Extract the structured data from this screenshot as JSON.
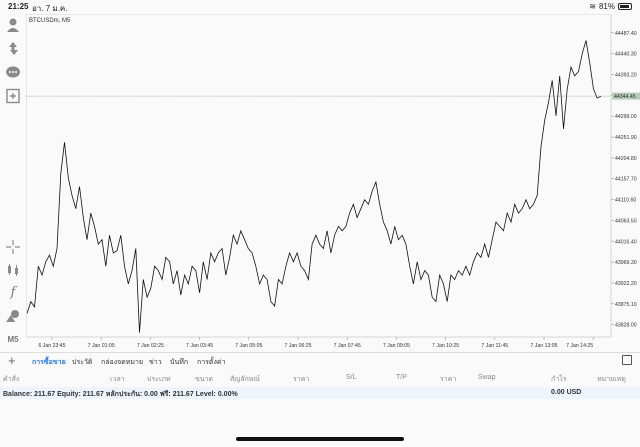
{
  "status_bar": {
    "time": "21:25",
    "date": "อา. 7 ม.ค.",
    "battery": "81%"
  },
  "sidebar": {
    "icons": [
      "accounts-icon",
      "trade-icon",
      "chat-icon",
      "new-chart-icon",
      "crosshair-icon",
      "candles-icon",
      "indicators-icon",
      "objects-icon",
      "timeframe"
    ],
    "timeframe_label": "M5"
  },
  "chart": {
    "symbol_label": "BTCUSDm, M5",
    "current_price_label": "44344.45"
  },
  "chart_data": {
    "type": "line",
    "title": "BTCUSDm, M5",
    "y_ticks": [
      "44487.40",
      "44440.30",
      "44393.20",
      "44346.10",
      "44299.00",
      "44251.90",
      "44204.80",
      "44157.70",
      "44110.60",
      "44063.50",
      "44016.40",
      "43969.30",
      "43922.20",
      "43875.10",
      "43828.00"
    ],
    "x_ticks": [
      "6 Jan 23:45",
      "7 Jan 01:05",
      "7 Jan 02:25",
      "7 Jan 03:45",
      "7 Jan 05:05",
      "7 Jan 06:25",
      "7 Jan 07:45",
      "7 Jan 09:05",
      "7 Jan 10:25",
      "7 Jan 11:45",
      "7 Jan 13:05",
      "7 Jan 14:25"
    ],
    "ylim": [
      43800,
      44530
    ],
    "current_price": 44344.45,
    "values": [
      43853,
      43880,
      43868,
      43960,
      43940,
      43970,
      43985,
      43960,
      44000,
      44170,
      44240,
      44160,
      44120,
      44090,
      44140,
      44070,
      44020,
      44080,
      44050,
      44010,
      44020,
      43960,
      44030,
      43990,
      43995,
      44030,
      43960,
      43920,
      43950,
      44000,
      43810,
      43930,
      43890,
      43910,
      43960,
      43950,
      43930,
      43980,
      43970,
      43920,
      43950,
      43895,
      43940,
      43920,
      43960,
      43950,
      43900,
      43970,
      43930,
      43990,
      43970,
      43990,
      44000,
      43940,
      43980,
      44030,
      44010,
      44040,
      44020,
      44000,
      43990,
      43960,
      43920,
      43940,
      43930,
      43880,
      43870,
      43930,
      43920,
      43960,
      43990,
      43970,
      43990,
      43960,
      43950,
      43930,
      44010,
      44030,
      44010,
      44000,
      44040,
      43990,
      44030,
      44050,
      44040,
      44050,
      44080,
      44100,
      44070,
      44090,
      44110,
      44100,
      44130,
      44150,
      44100,
      44060,
      44040,
      44010,
      44050,
      44020,
      44030,
      44010,
      43960,
      43920,
      43970,
      43930,
      43950,
      43940,
      43890,
      43880,
      43940,
      43920,
      43880,
      43940,
      43930,
      43950,
      43940,
      43960,
      43940,
      43970,
      43990,
      43980,
      44010,
      43980,
      44020,
      44060,
      44050,
      44040,
      44080,
      44060,
      44100,
      44080,
      44090,
      44110,
      44090,
      44100,
      44120,
      44230,
      44290,
      44330,
      44380,
      44300,
      44390,
      44270,
      44360,
      44410,
      44390,
      44400,
      44440,
      44470,
      44420,
      44360,
      44340,
      44344
    ]
  },
  "tabs": {
    "add_label": "+",
    "items": [
      "การซื้อขาย",
      "ประวัติ",
      "กล่องจดหมาย",
      "ข่าว",
      "บันทึก",
      "การตั้งค่า"
    ],
    "active": "การซื้อขาย"
  },
  "columns": [
    "คำสั่ง",
    "เวลา",
    "ประเภท",
    "ขนาด",
    "สัญลักษณ์",
    "ราคา",
    "S/L",
    "T/P",
    "ราคา",
    "Swap",
    "กำไร",
    "หมายเหตุ"
  ],
  "balance_bar": {
    "text": "Balance: 211.67 Equity: 211.67 หลักประกัน: 0.00 ฟรี: 211.67 Level: 0.00%",
    "profit": "0.00  USD"
  },
  "colors": {
    "accent": "#2d7be0",
    "line": "#111111",
    "price_line": "#9ab3a0"
  }
}
